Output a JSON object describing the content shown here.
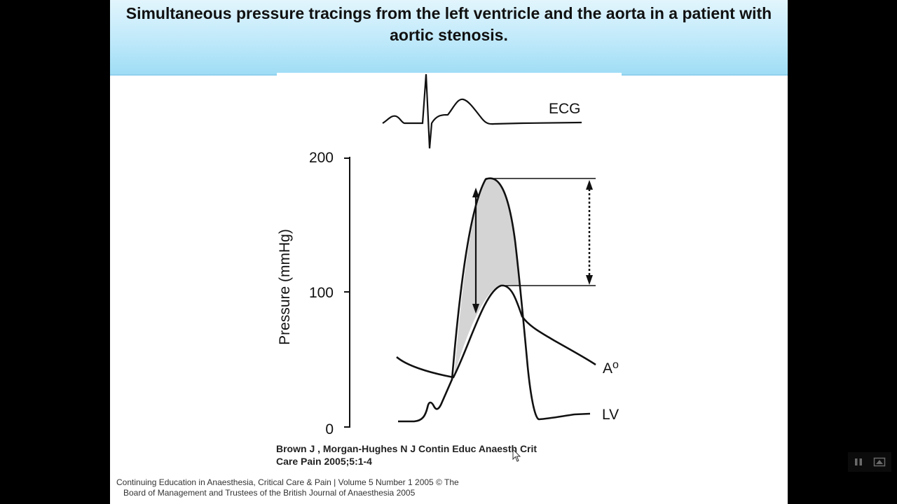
{
  "slide": {
    "title": "Simultaneous pressure tracings from the left ventricle and the aorta in a patient with aortic stenosis."
  },
  "figure": {
    "ecg_label": "ECG",
    "y_axis_label": "Pressure (mmHg)",
    "y_ticks": [
      "200",
      "100",
      "0"
    ],
    "ao_label": "Ao",
    "lv_label": "LV"
  },
  "citation": {
    "line1": "Brown J , Morgan-Hughes N J Contin Educ Anaesth Crit",
    "line2": "Care Pain 2005;5:1-4"
  },
  "footer": {
    "line1": "Continuing Education in Anaesthesia, Critical Care & Pain | Volume 5 Number 1 2005 © The",
    "line2": "Board of Management and Trustees of the British Journal of Anaesthesia 2005"
  },
  "media_controls": {
    "icons": [
      "pause-icon",
      "fullscreen-icon"
    ]
  }
}
